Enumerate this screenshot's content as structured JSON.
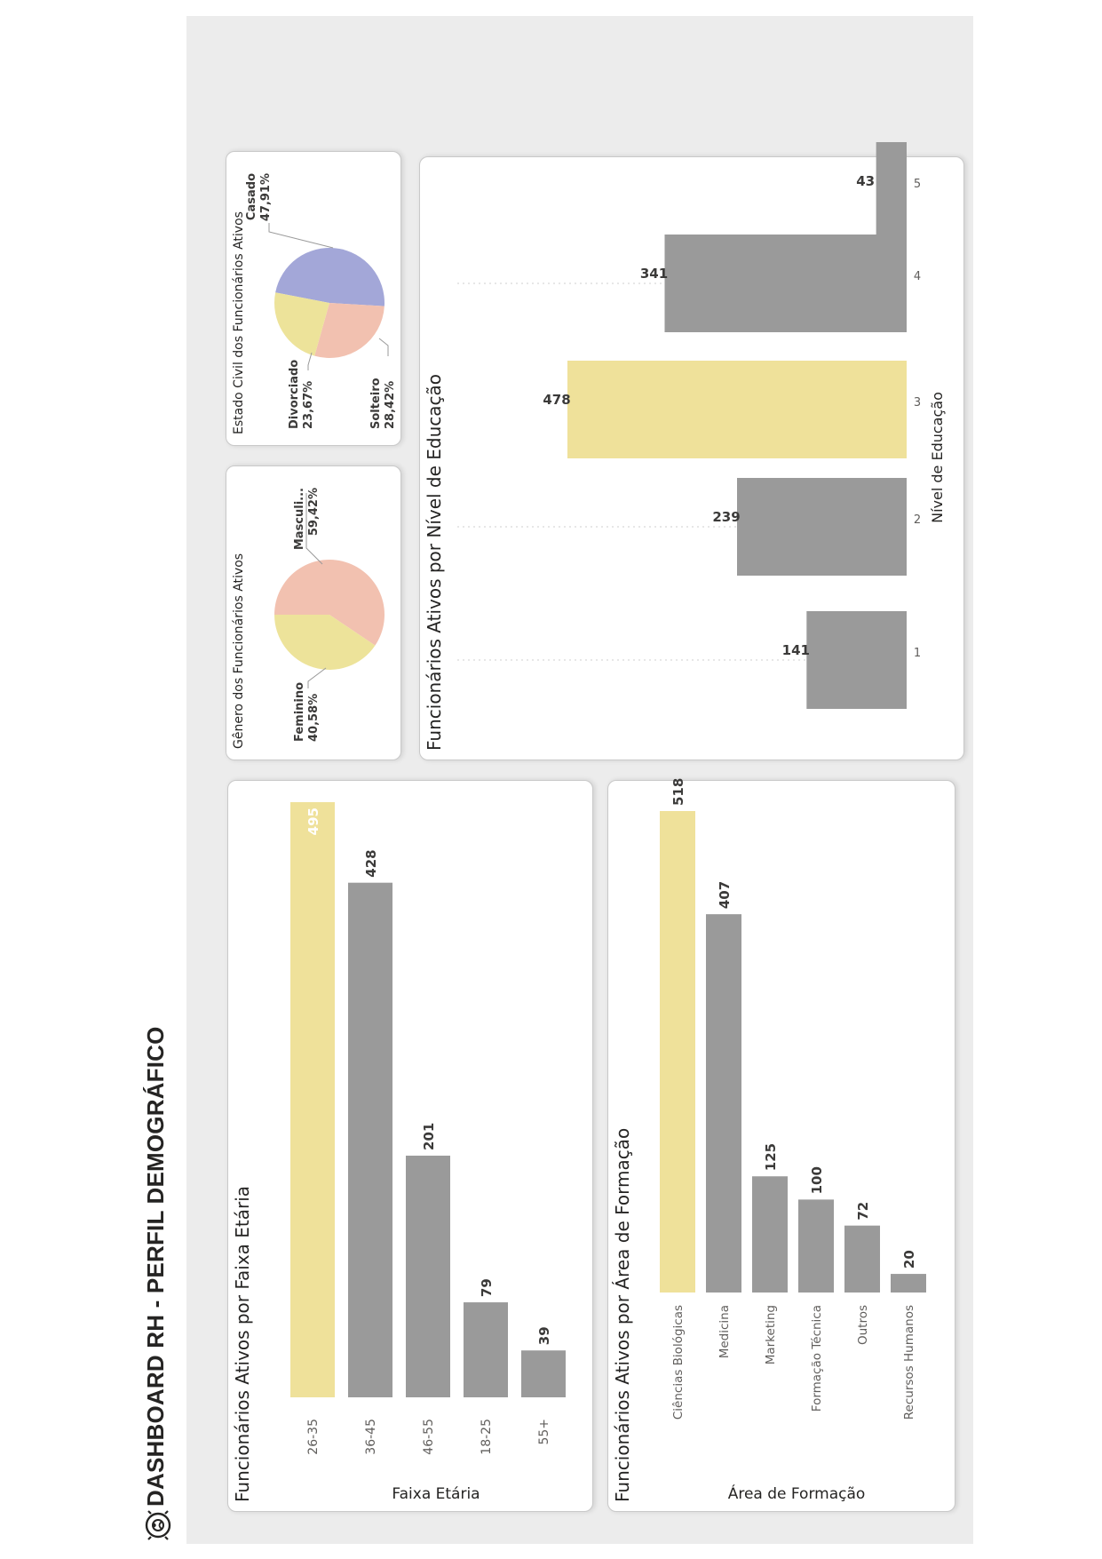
{
  "page": {
    "title": "DASHBOARD RH - PERFIL DEMOGRÁFICO"
  },
  "icons": {
    "logo": "cycle-person-icon"
  },
  "colors": {
    "highlight": "#efe19a",
    "bar": "#9a9a9a",
    "pie_fem": "#ede39a",
    "pie_masc": "#f2c1b0",
    "pie_casado": "#a3a7d8",
    "pie_solteiro": "#f2c1b0",
    "pie_divorciado": "#ede39a"
  },
  "chart_data": [
    {
      "id": "faixa",
      "type": "bar",
      "title": "Funcionários Ativos por Faixa Etária",
      "ylabel": "Faixa Etária",
      "categories": [
        "26-35",
        "36-45",
        "46-55",
        "18-25",
        "55+"
      ],
      "values": [
        495,
        428,
        201,
        79,
        39
      ],
      "highlight_index": 0,
      "ylim": [
        0,
        495
      ]
    },
    {
      "id": "area",
      "type": "bar",
      "title": "Funcionários Ativos por Área de Formação",
      "ylabel": "Área de Formação",
      "categories": [
        "Ciências Biológicas",
        "Medicina",
        "Marketing",
        "Formação Técnica",
        "Outros",
        "Recursos Humanos"
      ],
      "values": [
        518,
        407,
        125,
        100,
        72,
        20
      ],
      "highlight_index": 0,
      "ylim": [
        0,
        518
      ]
    },
    {
      "id": "genero",
      "type": "pie",
      "title": "Gênero dos Funcionários Ativos",
      "slices": [
        {
          "label": "Masculi...",
          "pct": "59,42%",
          "value": 59.42
        },
        {
          "label": "Feminino",
          "pct": "40,58%",
          "value": 40.58
        }
      ]
    },
    {
      "id": "civil",
      "type": "pie",
      "title": "Estado Civil dos Funcionários Ativos",
      "slices": [
        {
          "label": "Casado",
          "pct": "47,91%",
          "value": 47.91
        },
        {
          "label": "Solteiro",
          "pct": "28,42%",
          "value": 28.42
        },
        {
          "label": "Divorciado",
          "pct": "23,67%",
          "value": 23.67
        }
      ]
    },
    {
      "id": "educacao",
      "type": "bar",
      "title": "Funcionários Ativos por Nível de Educação",
      "xlabel": "Nível de Educação",
      "categories": [
        "1",
        "2",
        "3",
        "4",
        "5"
      ],
      "values": [
        141,
        239,
        478,
        341,
        43
      ],
      "highlight_index": 2,
      "ylim": [
        0,
        478
      ],
      "grid": true
    }
  ]
}
